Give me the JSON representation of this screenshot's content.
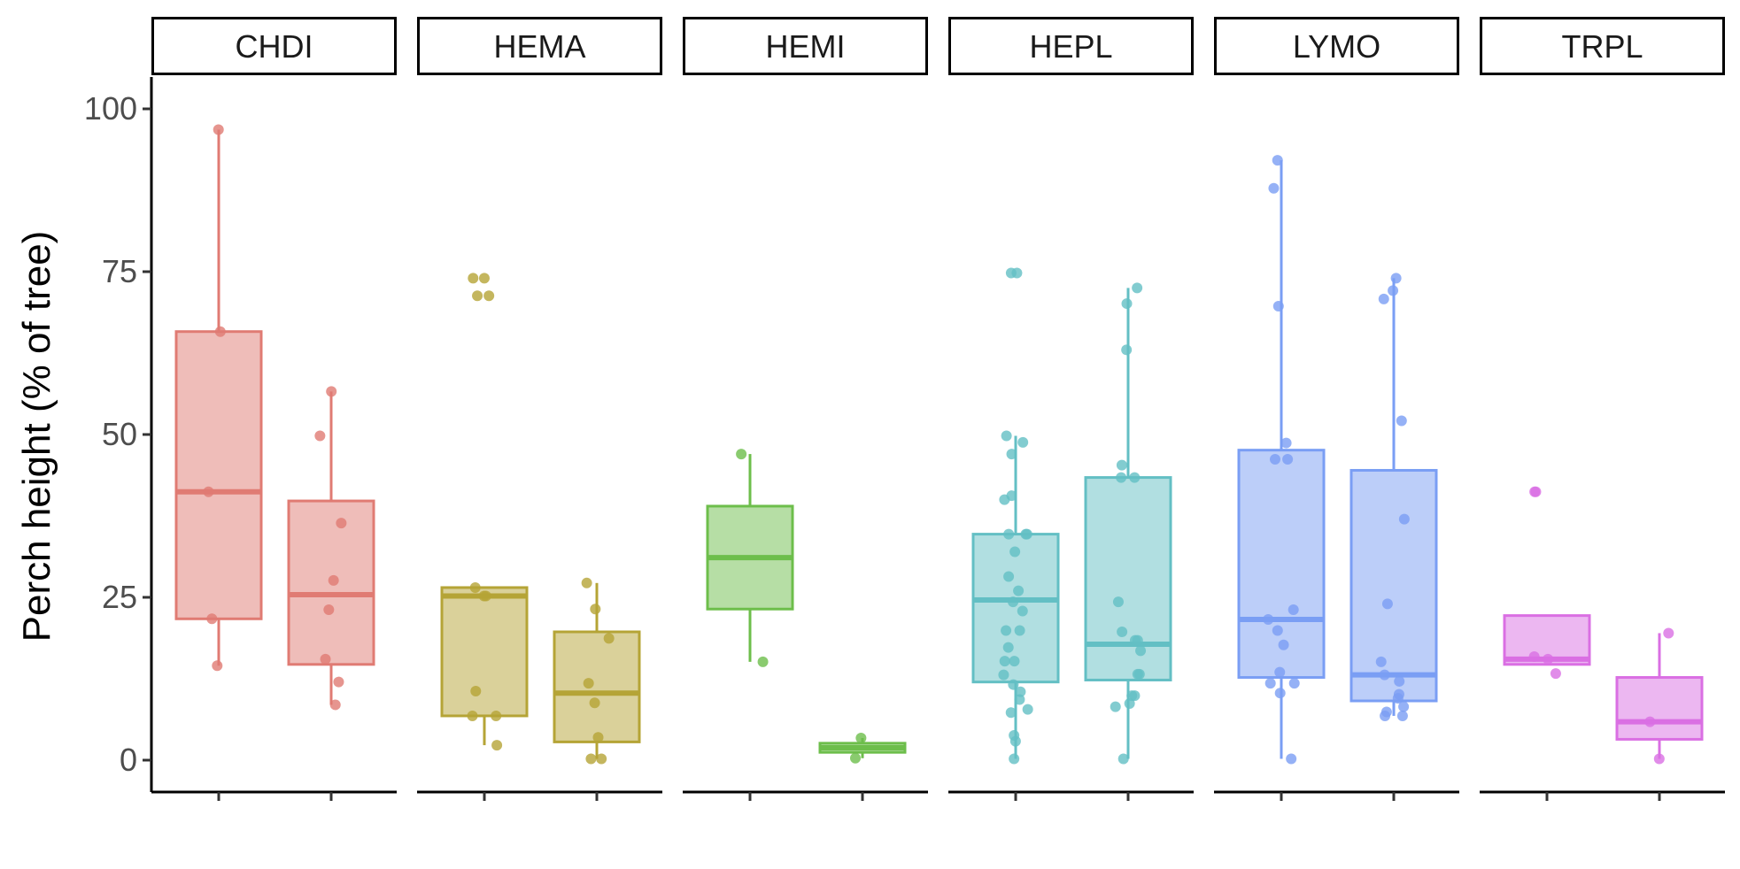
{
  "chart_data": {
    "type": "box",
    "ylabel": "Perch height (% of tree)",
    "xlabel": "",
    "ylim": [
      -5,
      105
    ],
    "y_ticks": [
      0,
      25,
      50,
      75,
      100
    ],
    "grid": false,
    "legend": "none",
    "panels": [
      {
        "name": "CHDI",
        "color": "#E07B73",
        "boxes": [
          {
            "q1": 21.7,
            "median": 41.2,
            "q3": 65.8,
            "lower": 14.5,
            "upper": 96.8,
            "outliers": [],
            "points": [
              96.8,
              65.8,
              41.2,
              21.7,
              14.5
            ]
          },
          {
            "q1": 14.7,
            "median": 25.4,
            "q3": 39.8,
            "lower": 8.5,
            "upper": 56.6,
            "outliers": [],
            "points": [
              56.6,
              49.8,
              36.4,
              27.6,
              23.1,
              15.5,
              12.0,
              8.5
            ]
          }
        ]
      },
      {
        "name": "HEMA",
        "color": "#B5A436",
        "boxes": [
          {
            "q1": 6.8,
            "median": 25.2,
            "q3": 26.5,
            "lower": 2.3,
            "upper": 26.5,
            "outliers": [
              71.3,
              74.0
            ],
            "points": [
              74.0,
              74.0,
              71.3,
              71.3,
              26.5,
              25.2,
              25.2,
              10.6,
              6.8,
              6.8,
              2.3
            ]
          },
          {
            "q1": 2.8,
            "median": 10.3,
            "q3": 19.7,
            "lower": 0.2,
            "upper": 27.2,
            "outliers": [],
            "points": [
              27.2,
              23.2,
              18.7,
              11.8,
              8.8,
              3.5,
              0.2,
              0.2
            ]
          }
        ]
      },
      {
        "name": "HEMI",
        "color": "#6DBE4B",
        "boxes": [
          {
            "q1": 23.2,
            "median": 31.1,
            "q3": 39.0,
            "lower": 15.1,
            "upper": 47.0,
            "outliers": [],
            "points": [
              47.0,
              15.1
            ]
          },
          {
            "q1": 1.2,
            "median": 1.9,
            "q3": 2.6,
            "lower": 0.3,
            "upper": 3.4,
            "outliers": [],
            "points": [
              3.4,
              0.3
            ]
          }
        ]
      },
      {
        "name": "HEPL",
        "color": "#63BFC4",
        "boxes": [
          {
            "q1": 12.0,
            "median": 24.6,
            "q3": 34.7,
            "lower": 0.2,
            "upper": 49.8,
            "outliers": [
              74.8
            ],
            "points": [
              74.8,
              74.8,
              49.8,
              48.8,
              47.0,
              40.6,
              40.0,
              34.7,
              34.7,
              34.7,
              32.0,
              28.2,
              26.0,
              24.3,
              22.9,
              19.9,
              19.9,
              17.3,
              15.2,
              15.2,
              13.1,
              11.6,
              10.5,
              9.3,
              7.8,
              7.3,
              3.8,
              2.9,
              0.2
            ]
          },
          {
            "q1": 12.3,
            "median": 17.8,
            "q3": 43.4,
            "lower": 0.2,
            "upper": 72.5,
            "outliers": [],
            "points": [
              72.5,
              70.1,
              63.0,
              45.3,
              43.4,
              43.4,
              24.3,
              19.7,
              18.4,
              18.4,
              16.8,
              13.2,
              13.2,
              9.9,
              9.9,
              8.7,
              8.2,
              0.2
            ]
          }
        ]
      },
      {
        "name": "LYMO",
        "color": "#7A9EF4",
        "boxes": [
          {
            "q1": 12.7,
            "median": 21.6,
            "q3": 47.6,
            "lower": 0.2,
            "upper": 92.1,
            "outliers": [],
            "points": [
              92.1,
              87.8,
              69.7,
              48.7,
              46.2,
              46.2,
              23.1,
              21.6,
              19.9,
              17.7,
              13.5,
              11.8,
              11.8,
              10.3,
              0.2
            ]
          },
          {
            "q1": 9.1,
            "median": 13.1,
            "q3": 44.5,
            "lower": 6.8,
            "upper": 74.0,
            "outliers": [],
            "points": [
              74.0,
              72.1,
              70.8,
              52.1,
              37.0,
              24.0,
              15.1,
              13.1,
              12.1,
              10.1,
              9.5,
              8.2,
              7.4,
              6.8,
              6.8
            ]
          }
        ]
      },
      {
        "name": "TRPL",
        "color": "#DA6FE3",
        "boxes": [
          {
            "q1": 14.7,
            "median": 15.5,
            "q3": 22.2,
            "lower": 14.7,
            "upper": 22.2,
            "outliers": [
              41.2
            ],
            "points": [
              41.2,
              41.2,
              15.9,
              15.5,
              13.3
            ]
          },
          {
            "q1": 3.2,
            "median": 5.9,
            "q3": 12.7,
            "lower": 0.2,
            "upper": 19.5,
            "outliers": [],
            "points": [
              19.5,
              5.9,
              0.2
            ]
          }
        ]
      }
    ]
  }
}
